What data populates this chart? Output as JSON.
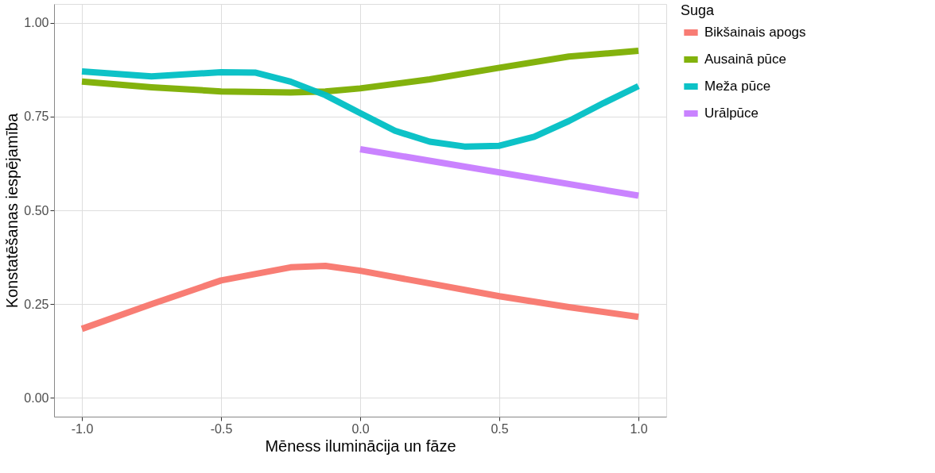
{
  "chart_data": {
    "type": "line",
    "xlabel": "Mēness iluminācija un fāze",
    "ylabel": "Konstatēšanas iespējamība",
    "legend_title": "Suga",
    "legend": "right",
    "grid": true,
    "xlim": [
      -1.1,
      1.1
    ],
    "ylim": [
      -0.05,
      1.05
    ],
    "xticks": [
      {
        "value": -1,
        "label": "-1.0"
      },
      {
        "value": -0.5,
        "label": "-0.5"
      },
      {
        "value": 0,
        "label": "0.0"
      },
      {
        "value": 0.5,
        "label": "0.5"
      },
      {
        "value": 1,
        "label": "1.0"
      }
    ],
    "yticks": [
      {
        "value": 0,
        "label": "0.00"
      },
      {
        "value": 0.25,
        "label": "0.25"
      },
      {
        "value": 0.5,
        "label": "0.50"
      },
      {
        "value": 0.75,
        "label": "0.75"
      },
      {
        "value": 1,
        "label": "1.00"
      }
    ],
    "series": [
      {
        "name": "Bikšainais apogs",
        "color": "#f8766d",
        "x": [
          -1,
          -0.75,
          -0.5,
          -0.25,
          -0.125,
          0,
          0.25,
          0.5,
          0.75,
          1
        ],
        "values": [
          0.184,
          0.25,
          0.313,
          0.348,
          0.352,
          0.339,
          0.305,
          0.271,
          0.242,
          0.216
        ]
      },
      {
        "name": "Ausainā pūce",
        "color": "#7cae00",
        "x": [
          -1,
          -0.75,
          -0.5,
          -0.25,
          -0.125,
          0,
          0.25,
          0.5,
          0.75,
          1
        ],
        "values": [
          0.843,
          0.828,
          0.817,
          0.814,
          0.817,
          0.825,
          0.849,
          0.88,
          0.91,
          0.925
        ]
      },
      {
        "name": "Meža pūce",
        "color": "#00bfc4",
        "x": [
          -1,
          -0.75,
          -0.5,
          -0.375,
          -0.25,
          -0.125,
          0,
          0.125,
          0.25,
          0.375,
          0.5,
          0.625,
          0.75,
          0.875,
          1
        ],
        "values": [
          0.87,
          0.857,
          0.868,
          0.867,
          0.843,
          0.807,
          0.759,
          0.712,
          0.683,
          0.67,
          0.672,
          0.696,
          0.738,
          0.786,
          0.831
        ]
      },
      {
        "name": "Urālpūce",
        "color": "#c77cff",
        "x": [
          0,
          1
        ],
        "values": [
          0.663,
          0.539
        ]
      }
    ]
  }
}
